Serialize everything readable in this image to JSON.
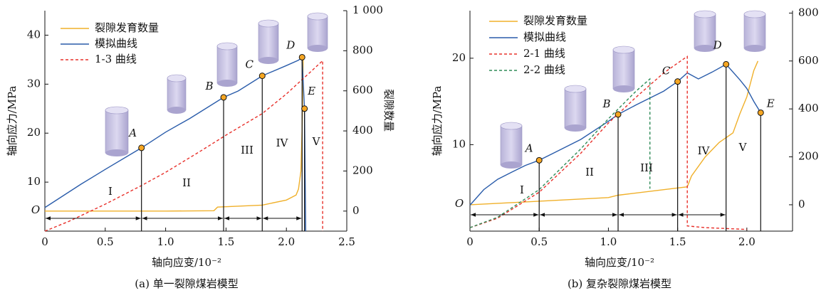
{
  "chart_data": [
    {
      "type": "line",
      "caption": "(a) 单一裂隙煤岩模型",
      "xlabel": "轴向应变/10⁻²",
      "ylabel": "轴向应力/MPa",
      "y2label": "裂隙数量",
      "origin_label": "O",
      "xlim": [
        0,
        2.5
      ],
      "xticks": [
        0,
        0.5,
        {
          "value": 1,
          "label": "1.0"
        },
        1.5,
        {
          "value": 2,
          "label": "2.0"
        },
        2.5
      ],
      "ylim": [
        0,
        45
      ],
      "yticks": [
        10,
        20,
        30,
        40
      ],
      "y2lim": [
        -100,
        1000
      ],
      "y2ticks": [
        0,
        200,
        400,
        600,
        800,
        {
          "value": 1000,
          "label": "1 000"
        }
      ],
      "series": [
        {
          "name": "裂隙发育数量",
          "color": "#f0b02a",
          "axis": "y2",
          "dash": false,
          "x": [
            0,
            0.5,
            1.0,
            1.4,
            1.43,
            1.8,
            2.0,
            2.08,
            2.1,
            2.12,
            2.13,
            2.14
          ],
          "values": [
            0,
            0,
            0,
            2,
            20,
            30,
            55,
            80,
            110,
            200,
            400,
            770
          ]
        },
        {
          "name": "模拟曲线",
          "color": "#2a5caa",
          "axis": "y",
          "dash": false,
          "x": [
            0,
            0.1,
            0.3,
            0.5,
            0.8,
            1.0,
            1.2,
            1.48,
            1.6,
            1.8,
            2.0,
            2.1,
            2.13,
            2.15,
            2.16
          ],
          "values": [
            4.8,
            6.4,
            9.6,
            12.6,
            17,
            20.2,
            23,
            27.3,
            28.6,
            31.7,
            33.8,
            34.9,
            35.5,
            25,
            0
          ]
        },
        {
          "name": "1-3 曲线",
          "color": "#e8302a",
          "axis": "y",
          "dash": true,
          "x": [
            0,
            0.2,
            0.5,
            0.8,
            1.0,
            1.3,
            1.5,
            1.8,
            2.0,
            2.2,
            2.3,
            2.3
          ],
          "values": [
            0,
            2,
            5.5,
            9.3,
            12,
            16.5,
            19.6,
            24,
            28,
            32.5,
            34.8,
            0
          ]
        }
      ],
      "points": [
        {
          "label": "A",
          "x": 0.8,
          "y": 17
        },
        {
          "label": "B",
          "x": 1.48,
          "y": 27.3
        },
        {
          "label": "C",
          "x": 1.8,
          "y": 31.7
        },
        {
          "label": "D",
          "x": 2.13,
          "y": 35.5
        },
        {
          "label": "E",
          "x": 2.15,
          "y": 25
        }
      ],
      "stages": [
        "I",
        "II",
        "III",
        "IV",
        "V"
      ]
    },
    {
      "type": "line",
      "caption": "(b) 复杂裂隙煤岩模型",
      "xlabel": "轴向应变/10⁻²",
      "ylabel": "轴向应力/MPa",
      "y2label": "裂隙数量",
      "origin_label": "O",
      "xlim": [
        0,
        2.33
      ],
      "xticks": [
        0,
        0.5,
        {
          "value": 1,
          "label": "1.0"
        },
        1.5,
        {
          "value": 2,
          "label": "2.0"
        }
      ],
      "ylim": [
        0,
        25.5
      ],
      "yticks": [
        10,
        20
      ],
      "y2lim": [
        -110,
        810
      ],
      "y2ticks": [
        0,
        200,
        400,
        600,
        800
      ],
      "series": [
        {
          "name": "裂隙发育数量",
          "color": "#f0b02a",
          "axis": "y2",
          "dash": false,
          "x": [
            0,
            0.5,
            1.0,
            1.07,
            1.5,
            1.57,
            1.6,
            1.7,
            1.8,
            1.9,
            1.95,
            2.0,
            2.05,
            2.08
          ],
          "values": [
            0,
            15,
            30,
            40,
            70,
            75,
            120,
            200,
            260,
            300,
            380,
            450,
            560,
            600
          ]
        },
        {
          "name": "模拟曲线",
          "color": "#2a5caa",
          "axis": "y",
          "dash": false,
          "x": [
            0,
            0.1,
            0.2,
            0.3,
            0.4,
            0.5,
            0.6,
            0.8,
            1.0,
            1.07,
            1.2,
            1.4,
            1.5,
            1.57,
            1.65,
            1.75,
            1.85,
            1.95,
            2.0,
            2.05,
            2.1
          ],
          "values": [
            3,
            4.8,
            6,
            6.8,
            7.6,
            8.2,
            9,
            10.6,
            12.7,
            13.5,
            14.6,
            16.2,
            17.3,
            18.3,
            17.6,
            18.4,
            19.3,
            17.5,
            16.5,
            15,
            13.7
          ]
        },
        {
          "name": "2-1 曲线",
          "color": "#e8302a",
          "axis": "y",
          "dash": true,
          "x": [
            0,
            0.2,
            0.5,
            0.8,
            1.0,
            1.2,
            1.4,
            1.55,
            1.57,
            1.57,
            1.7,
            2.0
          ],
          "values": [
            0.4,
            1.5,
            4.5,
            9,
            12.5,
            15.5,
            18.3,
            20,
            20.2,
            0.6,
            0.4,
            0.2
          ]
        },
        {
          "name": "2-2 曲线",
          "color": "#2e8b57",
          "axis": "y",
          "dash": true,
          "x": [
            0,
            0.2,
            0.5,
            0.8,
            1.0,
            1.2,
            1.3,
            1.3
          ],
          "values": [
            0.4,
            1.6,
            4.8,
            9.5,
            13,
            16.2,
            17.6,
            4.9
          ]
        }
      ],
      "points": [
        {
          "label": "A",
          "x": 0.5,
          "y": 8.2
        },
        {
          "label": "B",
          "x": 1.07,
          "y": 13.5
        },
        {
          "label": "C",
          "x": 1.5,
          "y": 17.3
        },
        {
          "label": "D",
          "x": 1.85,
          "y": 19.3
        },
        {
          "label": "E",
          "x": 2.1,
          "y": 13.7
        }
      ],
      "stages": [
        "I",
        "II",
        "III",
        "IV",
        "V"
      ]
    }
  ]
}
